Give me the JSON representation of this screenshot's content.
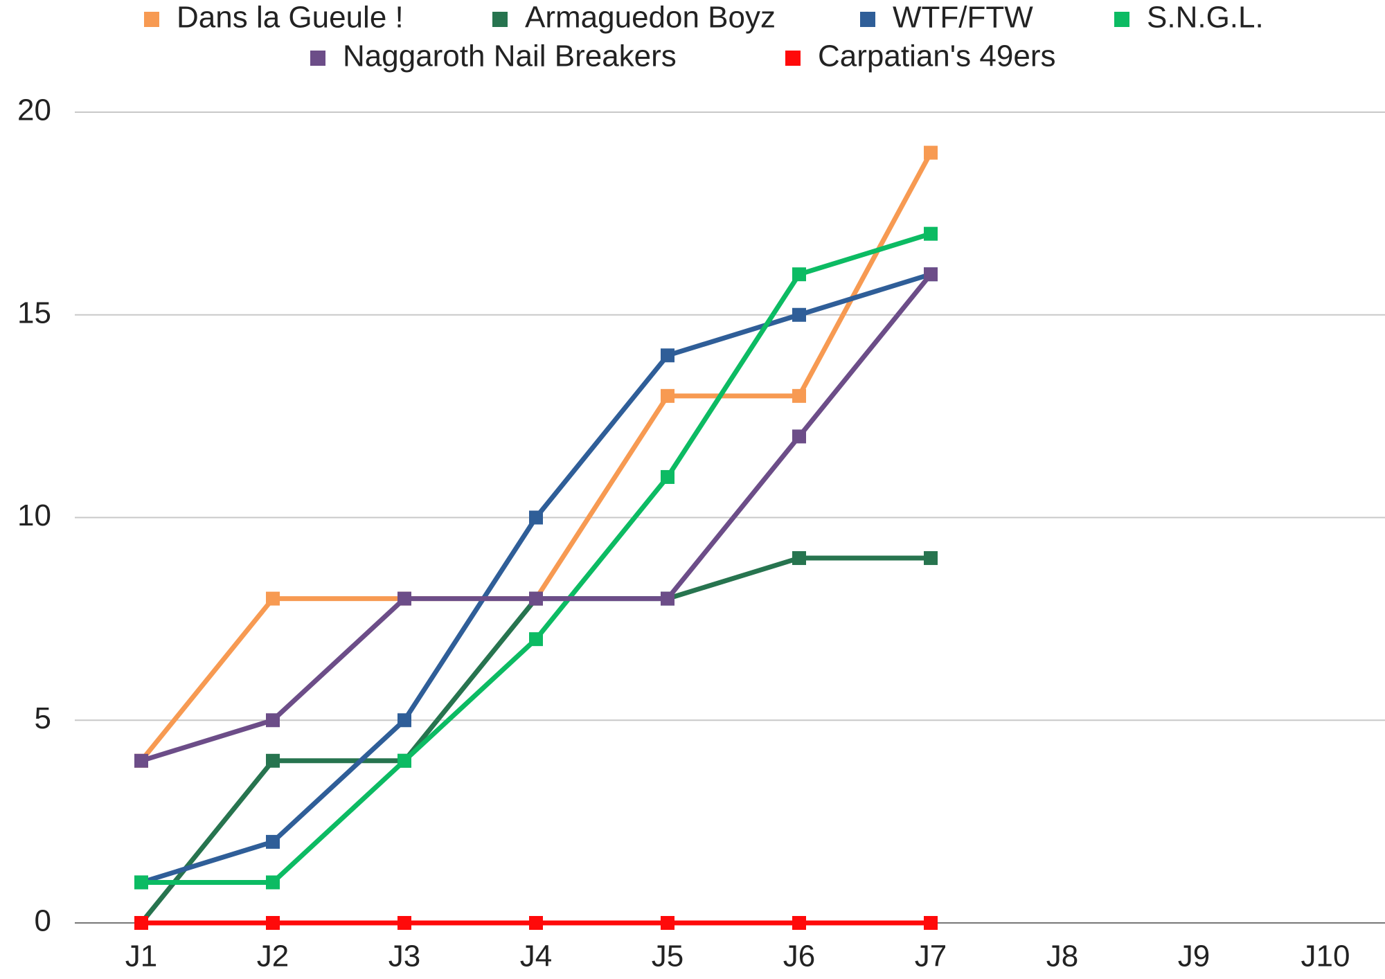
{
  "chart_data": {
    "type": "line",
    "categories": [
      "J1",
      "J2",
      "J3",
      "J4",
      "J5",
      "J6",
      "J7",
      "J8",
      "J9",
      "J10"
    ],
    "series": [
      {
        "name": "Dans la Gueule !",
        "color": "#f79a52",
        "values": [
          4,
          8,
          8,
          8,
          13,
          13,
          19,
          null,
          null,
          null
        ]
      },
      {
        "name": "Armaguedon Boyz",
        "color": "#27744f",
        "values": [
          0,
          4,
          4,
          8,
          8,
          9,
          9,
          null,
          null,
          null
        ]
      },
      {
        "name": "WTF/FTW",
        "color": "#2f5e98",
        "values": [
          1,
          2,
          5,
          10,
          14,
          15,
          16,
          null,
          null,
          null
        ]
      },
      {
        "name": "S.N.G.L.",
        "color": "#0cbb63",
        "values": [
          1,
          1,
          4,
          7,
          11,
          16,
          17,
          null,
          null,
          null
        ]
      },
      {
        "name": "Naggaroth Nail Breakers",
        "color": "#6c4d88",
        "values": [
          4,
          5,
          8,
          8,
          8,
          12,
          16,
          null,
          null,
          null
        ]
      },
      {
        "name": "Carpatian's 49ers",
        "color": "#ff0a0a",
        "values": [
          0,
          0,
          0,
          0,
          0,
          0,
          0,
          null,
          null,
          null
        ]
      }
    ],
    "ylim": [
      0,
      20
    ],
    "yticks": [
      0,
      5,
      10,
      15,
      20
    ],
    "grid": true,
    "legend": "top"
  }
}
